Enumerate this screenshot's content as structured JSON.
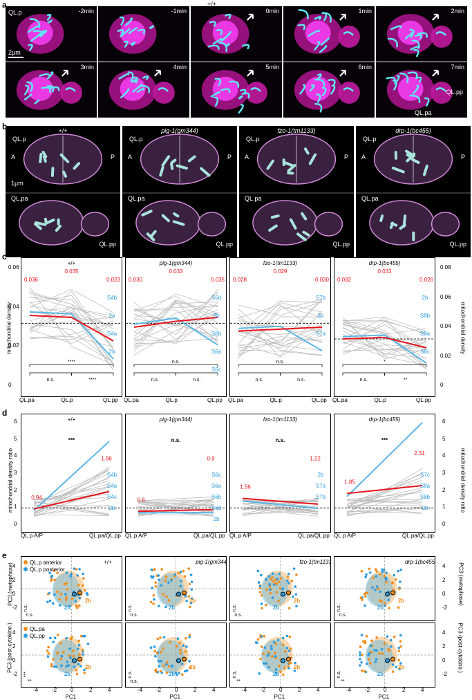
{
  "panel_labels": {
    "a": "a",
    "b": "b",
    "c": "c",
    "d": "d",
    "e": "e"
  },
  "a": {
    "genotype": "+/+",
    "row1": [
      "-2min",
      "-1min",
      "0min",
      "1min",
      "2min"
    ],
    "row2": [
      "3min",
      "4min",
      "5min",
      "6min",
      "7min"
    ],
    "ql_p": "QL.p",
    "scale": "2µm",
    "ql_pp": "QL.pp",
    "ql_pa": "QL.pa"
  },
  "b": {
    "titles": [
      "+/+",
      "pig-1(gm344)",
      "fzo-1(tm1133)",
      "drp-1(bc455)"
    ],
    "A": "A",
    "P": "P",
    "ql_p": "QL.p",
    "ql_pa": "QL.pa",
    "ql_pp": "QL.pp",
    "scale": "1µm"
  },
  "c": {
    "ylabel_left": "mitochondrial density",
    "ylabel_right": "mitochondrial density",
    "yticks_left": [
      "0",
      "0.02",
      "0.04",
      "0.06"
    ],
    "yticks_right": [
      "0",
      "0.02",
      "0.04",
      "0.06",
      "0.08"
    ],
    "xcats": [
      "QL.pa",
      "QL.p",
      "QL.pp"
    ],
    "ns": "n.s.",
    "panels": [
      {
        "title": "+/+",
        "reds": [
          "0.036",
          "0.035",
          "0.023"
        ],
        "sig": [
          "n.s.",
          "****",
          "****"
        ],
        "labels": [
          "S4b",
          "2a",
          "S4a",
          "2b"
        ]
      },
      {
        "title": "pig-1(gm344)",
        "reds": [
          "0.030",
          "0.033",
          "0.035"
        ],
        "sig": [
          "n.s.",
          "n.s.",
          "n.s."
        ],
        "labels": [
          "S6d",
          "2b",
          "S6b",
          "S6a",
          "S6c"
        ]
      },
      {
        "title": "fzo-1(tm1133)",
        "reds": [
          "0.028",
          "0.029",
          "0.030"
        ],
        "sig": [
          "n.s.",
          "n.s.",
          "n.s."
        ],
        "labels": [
          "S7b",
          "2b",
          "S7a"
        ]
      },
      {
        "title": "drp-1(bc455)",
        "reds": [
          "0.032",
          "0.033",
          "0.026"
        ],
        "sig": [
          "n.s.",
          "*",
          "**"
        ],
        "labels": [
          "2b",
          "S8b",
          "S8a",
          "S8c"
        ]
      }
    ]
  },
  "d": {
    "ylabel_left": "mitochondrial density ratio",
    "ylabel_right": "mitochondrial density ratio",
    "yticks_left": [
      "0",
      "1",
      "2",
      "3",
      "4",
      "5",
      "6"
    ],
    "yticks_right": [
      "0",
      "1",
      "2",
      "3",
      "4",
      "5",
      "6"
    ],
    "xcats": [
      "QL.p A/P",
      "QL.pa/QL.pp"
    ],
    "panels": [
      {
        "title": "+/+",
        "reds": [
          "0.94",
          "1.96"
        ],
        "sig": "***",
        "labels": [
          "S4b",
          "S4a",
          "S4c",
          "2b"
        ]
      },
      {
        "title": "pig-1(gm344)",
        "reds": [
          "0.8",
          "0.9"
        ],
        "sig": "n.s.",
        "labels": [
          "S6c",
          "S6a",
          "S6b",
          "S6d",
          "2b"
        ]
      },
      {
        "title": "fzo-1(tm1133)",
        "reds": [
          "1.56",
          "1.22"
        ],
        "sig": "n.s.",
        "labels": [
          "2b",
          "S7a",
          "S7b"
        ]
      },
      {
        "title": "drp-1(bc455)",
        "reds": [
          "1.85",
          "2.31"
        ],
        "sig": "***",
        "labels": [
          "S7c",
          "S8a",
          "S8b",
          "2b"
        ]
      }
    ]
  },
  "e": {
    "legend_top": [
      "QL.p anterior",
      "QL.p posterior"
    ],
    "legend_bot": [
      "QL.pa",
      "QL.pp"
    ],
    "titles": [
      "+/+",
      "pig-1(gm344)",
      "fzo-1(tm1133)",
      "drp-1(bc455)"
    ],
    "ylabel_top": "PC3 (metaphase)",
    "ylabel_bot": "PC3 (post-cytokine.)",
    "ylabel_top_r": "PC3 (metaphase)",
    "ylabel_bot_r": "PC3 (post-cytokine.)",
    "xlabel": "PC1",
    "xticks": [
      "-4",
      "-2",
      "0",
      "2",
      "4"
    ],
    "yticks": [
      "4",
      "2",
      "0",
      "-2"
    ],
    "marker": "2b",
    "stats_top": [
      [
        "n.s.",
        "n.s."
      ],
      [
        "n.s.",
        "n.s."
      ],
      [
        "n.s.",
        "n.s."
      ],
      [
        "n.s.",
        "n.s."
      ]
    ],
    "stats_bot": [
      [
        "***",
        "**"
      ],
      [
        "n.s.",
        "n.s."
      ],
      [
        "n.s.",
        "**"
      ],
      [
        "n.s.",
        "**"
      ]
    ],
    "colors": {
      "orange": "#f28e1c",
      "blue": "#2b9be0",
      "red": "#e8141c",
      "lightblue": "#5bb7e5",
      "darkblue": "#1b5e9e"
    }
  },
  "chart_data": [
    {
      "type": "line",
      "panel": "c",
      "title": "+/+",
      "categories": [
        "QL.pa",
        "QL.p",
        "QL.pp"
      ],
      "series": [],
      "values": [
        0.036,
        0.035,
        0.023
      ],
      "ylabel": "mitochondrial density",
      "ylim": [
        0,
        0.06
      ]
    },
    {
      "type": "line",
      "panel": "c",
      "title": "pig-1(gm344)",
      "categories": [
        "QL.pa",
        "QL.p",
        "QL.pp"
      ],
      "values": [
        0.03,
        0.033,
        0.035
      ],
      "ylim": [
        0,
        0.06
      ]
    },
    {
      "type": "line",
      "panel": "c",
      "title": "fzo-1(tm1133)",
      "categories": [
        "QL.pa",
        "QL.p",
        "QL.pp"
      ],
      "values": [
        0.028,
        0.029,
        0.03
      ],
      "ylim": [
        0,
        0.06
      ]
    },
    {
      "type": "line",
      "panel": "c",
      "title": "drp-1(bc455)",
      "categories": [
        "QL.pa",
        "QL.p",
        "QL.pp"
      ],
      "values": [
        0.032,
        0.033,
        0.026
      ],
      "ylim": [
        0,
        0.08
      ]
    },
    {
      "type": "line",
      "panel": "d",
      "title": "+/+",
      "categories": [
        "QL.p A/P",
        "QL.pa/QL.pp"
      ],
      "values": [
        0.94,
        1.96
      ],
      "ylim": [
        0,
        6
      ]
    },
    {
      "type": "line",
      "panel": "d",
      "title": "pig-1(gm344)",
      "categories": [
        "QL.p A/P",
        "QL.pa/QL.pp"
      ],
      "values": [
        0.8,
        0.9
      ],
      "ylim": [
        0,
        6
      ]
    },
    {
      "type": "line",
      "panel": "d",
      "title": "fzo-1(tm1133)",
      "categories": [
        "QL.p A/P",
        "QL.pa/QL.pp"
      ],
      "values": [
        1.56,
        1.22
      ],
      "ylim": [
        0,
        6
      ]
    },
    {
      "type": "line",
      "panel": "d",
      "title": "drp-1(bc455)",
      "categories": [
        "QL.p A/P",
        "QL.pa/QL.pp"
      ],
      "values": [
        1.85,
        2.31
      ],
      "ylim": [
        0,
        6
      ]
    }
  ]
}
